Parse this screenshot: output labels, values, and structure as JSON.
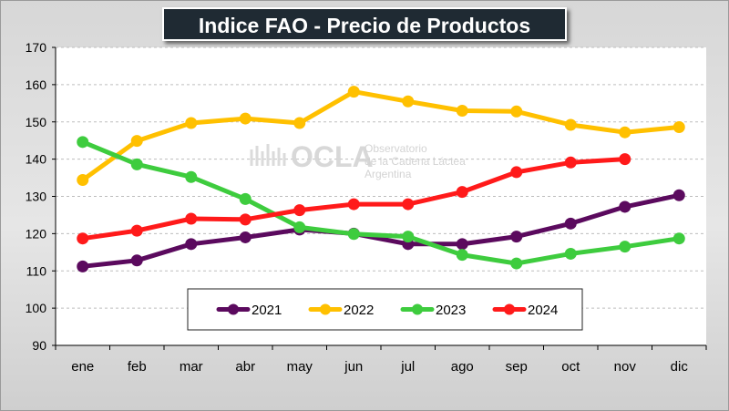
{
  "chart_data": {
    "type": "line",
    "title": "Indice FAO - Precio de Productos Lácteos",
    "xlabel": "",
    "ylabel": "",
    "categories": [
      "ene",
      "feb",
      "mar",
      "abr",
      "may",
      "jun",
      "jul",
      "ago",
      "sep",
      "oct",
      "nov",
      "dic"
    ],
    "ylim": [
      90,
      170
    ],
    "yticks": [
      90,
      100,
      110,
      120,
      130,
      140,
      150,
      160,
      170
    ],
    "grid": true,
    "legend_position": "bottom-center",
    "series": [
      {
        "name": "2021",
        "color": "#5b0a5e",
        "values": [
          111.2,
          112.8,
          117.2,
          119.0,
          121.1,
          120.0,
          117.2,
          117.2,
          119.2,
          122.7,
          127.2,
          130.3
        ]
      },
      {
        "name": "2022",
        "color": "#ffc000",
        "values": [
          134.4,
          144.9,
          149.7,
          150.9,
          149.7,
          158.1,
          155.5,
          153.0,
          152.8,
          149.2,
          147.2,
          148.6
        ]
      },
      {
        "name": "2023",
        "color": "#3ecc3e",
        "values": [
          144.6,
          138.6,
          135.2,
          129.3,
          121.7,
          119.9,
          119.2,
          114.3,
          112.0,
          114.6,
          116.5,
          118.7
        ]
      },
      {
        "name": "2024",
        "color": "#ff1a1a",
        "values": [
          118.7,
          120.8,
          124.0,
          123.8,
          126.3,
          127.9,
          127.9,
          131.2,
          136.5,
          139.1,
          140.0,
          null
        ]
      }
    ]
  },
  "watermark": {
    "logo_text": "OCLA",
    "line1": "Observatorio",
    "line2": "de la Cadena Láctea",
    "line3": "Argentina"
  }
}
